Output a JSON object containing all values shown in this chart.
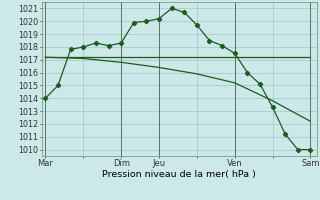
{
  "background_color": "#cce8e8",
  "grid_color": "#aacccc",
  "line_color": "#1a5e1a",
  "title": "Pression niveau de la mer( hPa )",
  "ylim": [
    1009.5,
    1021.5
  ],
  "yticks": [
    1010,
    1011,
    1012,
    1013,
    1014,
    1015,
    1016,
    1017,
    1018,
    1019,
    1020,
    1021
  ],
  "xtick_labels": [
    "Mar",
    "",
    "Dim",
    "Jeu",
    "",
    "Ven",
    "",
    "Sam"
  ],
  "xtick_positions": [
    0,
    3,
    6,
    9,
    12,
    15,
    18,
    21
  ],
  "vlines": [
    0,
    6,
    9,
    15,
    21
  ],
  "xlim": [
    -0.3,
    21.5
  ],
  "line1_x": [
    0,
    1,
    2,
    3,
    4,
    5,
    6,
    7,
    8,
    9,
    10,
    11,
    12,
    13,
    14,
    15,
    16,
    17,
    18,
    19,
    20,
    21
  ],
  "line1_y": [
    1014.0,
    1015.0,
    1017.8,
    1018.0,
    1018.3,
    1018.1,
    1018.3,
    1019.9,
    1020.0,
    1020.2,
    1021.0,
    1020.7,
    1019.7,
    1018.5,
    1018.1,
    1017.5,
    1016.0,
    1015.1,
    1013.3,
    1011.2,
    1010.0,
    1010.0
  ],
  "line2_x": [
    0,
    21
  ],
  "line2_y": [
    1017.2,
    1017.2
  ],
  "line3_x": [
    0,
    3,
    6,
    9,
    12,
    15,
    18,
    21
  ],
  "line3_y": [
    1017.2,
    1017.1,
    1016.8,
    1016.4,
    1015.9,
    1015.2,
    1013.8,
    1012.2
  ]
}
